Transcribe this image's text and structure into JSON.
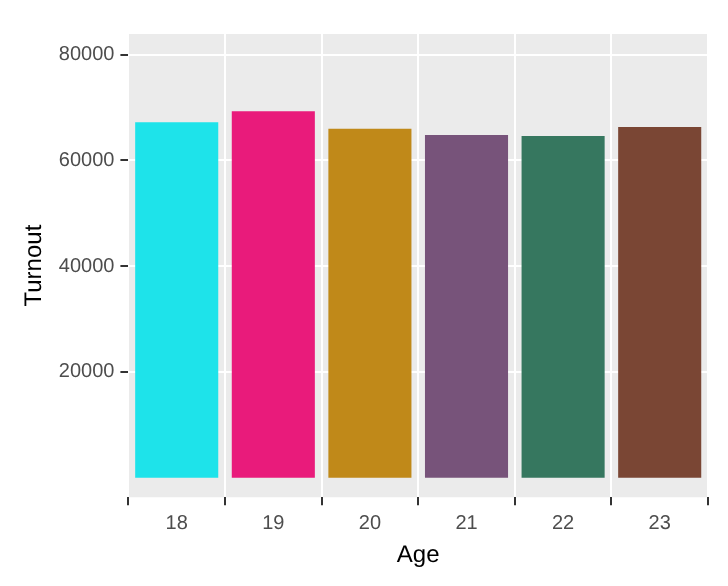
{
  "chart_data": {
    "type": "bar",
    "xlabel": "Age",
    "ylabel": "Turnout",
    "categories": [
      "18",
      "19",
      "20",
      "21",
      "22",
      "23"
    ],
    "values": [
      67200,
      69300,
      66000,
      64800,
      64600,
      66300
    ],
    "colors": [
      "#1ee3ea",
      "#e91b7b",
      "#c08919",
      "#77537a",
      "#36775f",
      "#7a4634"
    ],
    "ylim": [
      -3700,
      83900
    ],
    "yticks": [
      20000,
      40000,
      60000,
      80000
    ],
    "grid": true
  }
}
